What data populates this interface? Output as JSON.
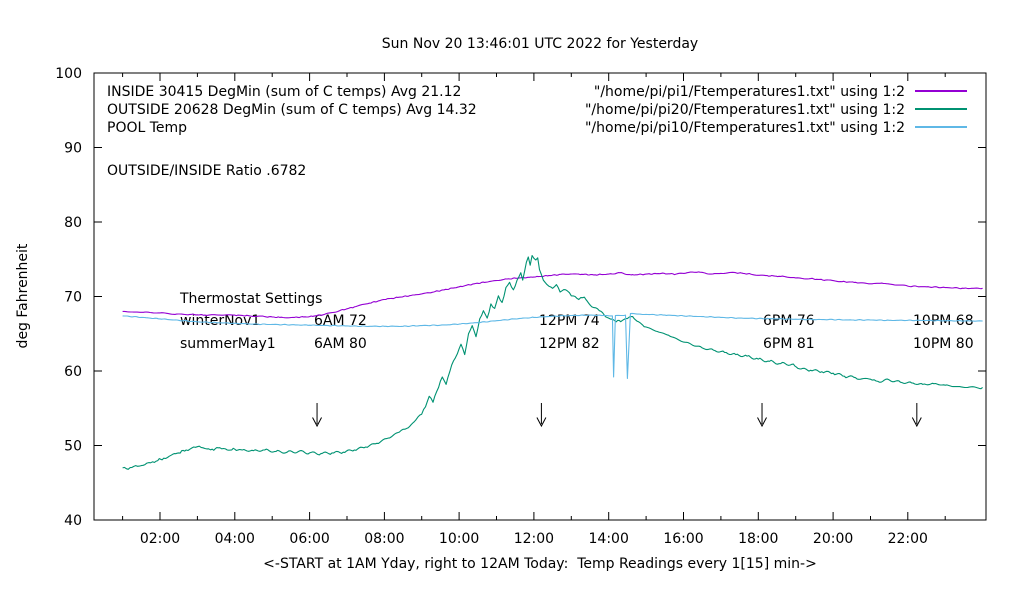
{
  "title": "Sun Nov 20 13:46:01 UTC 2022 for Yesterday",
  "axes": {
    "ylabel": "deg Fahrenheit",
    "xlabel": "<-START at 1AM Yday, right to 12AM Today:  Temp Readings every 1[15] min->",
    "y_ticks": [
      40,
      50,
      60,
      70,
      80,
      90,
      100
    ],
    "x_ticks": [
      {
        "t": 2,
        "label": "02:00"
      },
      {
        "t": 4,
        "label": "04:00"
      },
      {
        "t": 6,
        "label": "06:00"
      },
      {
        "t": 8,
        "label": "08:00"
      },
      {
        "t": 10,
        "label": "10:00"
      },
      {
        "t": 12,
        "label": "12:00"
      },
      {
        "t": 14,
        "label": "14:00"
      },
      {
        "t": 16,
        "label": "16:00"
      },
      {
        "t": 18,
        "label": "18:00"
      },
      {
        "t": 20,
        "label": "20:00"
      },
      {
        "t": 22,
        "label": "22:00"
      }
    ]
  },
  "legend": {
    "rows": [
      {
        "label": "INSIDE 30415 DegMin (sum of C temps) Avg 21.12",
        "file": "\"/home/pi/pi1/Ftemperatures1.txt\" using 1:2"
      },
      {
        "label": "OUTSIDE 20628 DegMin (sum of C temps) Avg 14.32",
        "file": "\"/home/pi/pi20/Ftemperatures1.txt\" using 1:2"
      },
      {
        "label": "POOL Temp",
        "file": "\"/home/pi/pi10/Ftemperatures1.txt\" using 1:2"
      }
    ]
  },
  "annotations": {
    "ratio": "OUTSIDE/INSIDE Ratio .6782",
    "thermostat": {
      "heading": "Thermostat Settings",
      "rows": [
        {
          "cells": [
            "winterNov1",
            "6AM 72",
            "12PM 74",
            "6PM 76",
            "10PM 68"
          ]
        },
        {
          "cells": [
            "summerMay1",
            "6AM 80",
            "12PM 82",
            "6PM 81",
            "10PM 80"
          ]
        }
      ]
    }
  },
  "chart_data": {
    "type": "line",
    "x_unit": "hours, 1AM yesterday to 12AM today, readings every 1[15] min",
    "xlim": [
      0.235,
      24.09
    ],
    "ylim": [
      40,
      100
    ],
    "grid": false,
    "legend_position": "top inside",
    "arrows_t": [
      6.2,
      12.2,
      18.1,
      22.24
    ],
    "series": [
      {
        "name": "INSIDE",
        "color": "#9400D3",
        "noise": 0.07,
        "points": [
          [
            1,
            68
          ],
          [
            1.3,
            67.9
          ],
          [
            1.6,
            67.9
          ],
          [
            2,
            67.8
          ],
          [
            2.4,
            67.6
          ],
          [
            2.8,
            67.6
          ],
          [
            3.2,
            67.5
          ],
          [
            3.6,
            67.5
          ],
          [
            4,
            67.5
          ],
          [
            4.4,
            67.4
          ],
          [
            4.8,
            67.3
          ],
          [
            5.2,
            67.2
          ],
          [
            5.6,
            67.2
          ],
          [
            6,
            67.3
          ],
          [
            6.4,
            67.6
          ],
          [
            6.8,
            68.1
          ],
          [
            7.2,
            68.6
          ],
          [
            7.6,
            69.1
          ],
          [
            8,
            69.6
          ],
          [
            8.4,
            69.9
          ],
          [
            8.8,
            70.2
          ],
          [
            9.2,
            70.5
          ],
          [
            9.6,
            70.9
          ],
          [
            10,
            71.3
          ],
          [
            10.4,
            71.7
          ],
          [
            10.8,
            72
          ],
          [
            11.2,
            72.3
          ],
          [
            11.6,
            72.5
          ],
          [
            12,
            72.6
          ],
          [
            12.4,
            72.8
          ],
          [
            12.8,
            73
          ],
          [
            13.2,
            73
          ],
          [
            13.6,
            72.9
          ],
          [
            14,
            73
          ],
          [
            14.3,
            73.2
          ],
          [
            14.6,
            72.9
          ],
          [
            15,
            73
          ],
          [
            15.4,
            73.1
          ],
          [
            15.8,
            73
          ],
          [
            16.1,
            73.2
          ],
          [
            16.4,
            73.3
          ],
          [
            16.7,
            73
          ],
          [
            17,
            73.1
          ],
          [
            17.4,
            73.2
          ],
          [
            17.8,
            73
          ],
          [
            18.2,
            72.8
          ],
          [
            18.6,
            72.7
          ],
          [
            19,
            72.5
          ],
          [
            19.4,
            72.4
          ],
          [
            19.8,
            72.2
          ],
          [
            20.2,
            72
          ],
          [
            20.6,
            71.9
          ],
          [
            21,
            71.7
          ],
          [
            21.3,
            71.8
          ],
          [
            21.6,
            71.6
          ],
          [
            22,
            71.4
          ],
          [
            22.5,
            71.3
          ],
          [
            23,
            71.2
          ],
          [
            23.5,
            71.1
          ],
          [
            24,
            71.1
          ]
        ]
      },
      {
        "name": "OUTSIDE",
        "color": "#009272",
        "noise": 0.18,
        "points": [
          [
            1,
            47
          ],
          [
            1.15,
            46.8
          ],
          [
            1.3,
            47.2
          ],
          [
            1.5,
            47.3
          ],
          [
            1.7,
            47.7
          ],
          [
            1.9,
            47.9
          ],
          [
            2.1,
            48.3
          ],
          [
            2.3,
            48.7
          ],
          [
            2.5,
            49
          ],
          [
            2.7,
            49.4
          ],
          [
            2.9,
            49.8
          ],
          [
            3.05,
            49.9
          ],
          [
            3.2,
            49.6
          ],
          [
            3.4,
            49.5
          ],
          [
            3.6,
            49.7
          ],
          [
            3.8,
            49.4
          ],
          [
            4,
            49.5
          ],
          [
            4.2,
            49.4
          ],
          [
            4.5,
            49.3
          ],
          [
            4.8,
            49.4
          ],
          [
            5.1,
            49.2
          ],
          [
            5.4,
            49.1
          ],
          [
            5.7,
            49.2
          ],
          [
            6,
            49
          ],
          [
            6.3,
            48.9
          ],
          [
            6.6,
            49
          ],
          [
            6.9,
            49.1
          ],
          [
            7.2,
            49.4
          ],
          [
            7.5,
            49.8
          ],
          [
            7.8,
            50.3
          ],
          [
            8.1,
            51
          ],
          [
            8.4,
            51.8
          ],
          [
            8.6,
            52.3
          ],
          [
            8.8,
            53.2
          ],
          [
            9,
            54.2
          ],
          [
            9.1,
            55.2
          ],
          [
            9.2,
            56.6
          ],
          [
            9.3,
            55.8
          ],
          [
            9.45,
            57.8
          ],
          [
            9.55,
            59.2
          ],
          [
            9.65,
            58.2
          ],
          [
            9.8,
            60.8
          ],
          [
            9.95,
            62.3
          ],
          [
            10.05,
            63.6
          ],
          [
            10.15,
            62.2
          ],
          [
            10.25,
            65
          ],
          [
            10.35,
            66.1
          ],
          [
            10.45,
            64.6
          ],
          [
            10.55,
            67
          ],
          [
            10.65,
            68.1
          ],
          [
            10.75,
            67.1
          ],
          [
            10.85,
            69
          ],
          [
            10.95,
            68.4
          ],
          [
            11.05,
            70.1
          ],
          [
            11.15,
            69.2
          ],
          [
            11.25,
            71.2
          ],
          [
            11.35,
            71.9
          ],
          [
            11.45,
            70.9
          ],
          [
            11.55,
            72.2
          ],
          [
            11.65,
            73.2
          ],
          [
            11.7,
            72.2
          ],
          [
            11.8,
            74.6
          ],
          [
            11.85,
            75.3
          ],
          [
            11.9,
            74.2
          ],
          [
            11.95,
            75.5
          ],
          [
            12.05,
            74.9
          ],
          [
            12.1,
            75.2
          ],
          [
            12.15,
            73.6
          ],
          [
            12.25,
            72.2
          ],
          [
            12.35,
            71.6
          ],
          [
            12.5,
            71.1
          ],
          [
            12.6,
            71.6
          ],
          [
            12.7,
            70.6
          ],
          [
            12.85,
            70.9
          ],
          [
            13,
            70.1
          ],
          [
            13.2,
            69.6
          ],
          [
            13.35,
            69.9
          ],
          [
            13.55,
            68.6
          ],
          [
            13.75,
            68.1
          ],
          [
            14,
            67.1
          ],
          [
            14.2,
            66.6
          ],
          [
            14.4,
            66.9
          ],
          [
            14.6,
            67.3
          ],
          [
            14.8,
            66.6
          ],
          [
            15,
            65.9
          ],
          [
            15.3,
            65.3
          ],
          [
            15.6,
            64.8
          ],
          [
            15.9,
            64.1
          ],
          [
            16.2,
            63.6
          ],
          [
            16.5,
            63.1
          ],
          [
            16.8,
            62.8
          ],
          [
            17.1,
            62.5
          ],
          [
            17.4,
            62.2
          ],
          [
            17.7,
            62
          ],
          [
            18,
            61.6
          ],
          [
            18.3,
            61.3
          ],
          [
            18.6,
            61
          ],
          [
            18.9,
            60.9
          ],
          [
            19.1,
            60.3
          ],
          [
            19.4,
            60.1
          ],
          [
            19.7,
            59.9
          ],
          [
            20,
            59.7
          ],
          [
            20.3,
            59.3
          ],
          [
            20.6,
            59.1
          ],
          [
            21,
            58.9
          ],
          [
            21.2,
            58.6
          ],
          [
            21.5,
            58.8
          ],
          [
            21.8,
            58.5
          ],
          [
            22.1,
            58.4
          ],
          [
            22.4,
            58.2
          ],
          [
            22.7,
            58.3
          ],
          [
            23,
            58.1
          ],
          [
            23.3,
            57.9
          ],
          [
            23.6,
            57.8
          ],
          [
            24,
            57.8
          ]
        ]
      },
      {
        "name": "POOL",
        "color": "#5FB8E6",
        "noise": 0.05,
        "points": [
          [
            1,
            67.4
          ],
          [
            1.5,
            67.2
          ],
          [
            2,
            67
          ],
          [
            2.5,
            66.8
          ],
          [
            3,
            66.6
          ],
          [
            3.5,
            66.5
          ],
          [
            4,
            66.4
          ],
          [
            4.5,
            66.3
          ],
          [
            5,
            66.25
          ],
          [
            5.5,
            66.2
          ],
          [
            6,
            66.15
          ],
          [
            6.5,
            66.1
          ],
          [
            7,
            66.05
          ],
          [
            7.5,
            66
          ],
          [
            8,
            66
          ],
          [
            8.5,
            66
          ],
          [
            9,
            66.1
          ],
          [
            9.5,
            66.15
          ],
          [
            10,
            66.3
          ],
          [
            10.5,
            66.5
          ],
          [
            11,
            66.75
          ],
          [
            11.5,
            67
          ],
          [
            12,
            67.2
          ],
          [
            12.5,
            67.35
          ],
          [
            13,
            67.45
          ],
          [
            13.5,
            67.5
          ],
          [
            13.9,
            67.45
          ],
          [
            14.1,
            67.4
          ],
          [
            14.13,
            59.2
          ],
          [
            14.18,
            67.45
          ],
          [
            14.45,
            67.5
          ],
          [
            14.5,
            59
          ],
          [
            14.58,
            67.7
          ],
          [
            14.8,
            67.65
          ],
          [
            15,
            67.6
          ],
          [
            15.5,
            67.5
          ],
          [
            16,
            67.4
          ],
          [
            16.5,
            67.3
          ],
          [
            17,
            67.2
          ],
          [
            17.5,
            67.1
          ],
          [
            18,
            67.05
          ],
          [
            18.5,
            67
          ],
          [
            19,
            66.95
          ],
          [
            19.5,
            66.9
          ],
          [
            20,
            66.9
          ],
          [
            20.5,
            66.85
          ],
          [
            21,
            66.85
          ],
          [
            21.5,
            66.8
          ],
          [
            22,
            66.8
          ],
          [
            22.5,
            66.78
          ],
          [
            23,
            66.75
          ],
          [
            23.5,
            66.72
          ],
          [
            24,
            66.7
          ]
        ]
      }
    ]
  }
}
